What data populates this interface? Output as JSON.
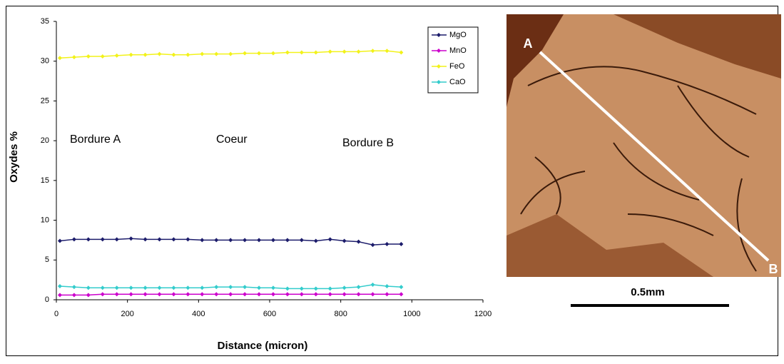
{
  "chart_data": {
    "type": "line",
    "y_label": "Oxydes %",
    "x_label": "Distance (micron)",
    "annotations": [
      "Bordure A",
      "Coeur",
      "Bordure B"
    ],
    "x": [
      10,
      50,
      90,
      130,
      170,
      210,
      250,
      290,
      330,
      370,
      410,
      450,
      490,
      530,
      570,
      610,
      650,
      690,
      730,
      770,
      810,
      850,
      890,
      930,
      970
    ],
    "series": [
      {
        "name": "MgO",
        "color": "#1c1c6b",
        "values": [
          7.4,
          7.6,
          7.6,
          7.6,
          7.6,
          7.7,
          7.6,
          7.6,
          7.6,
          7.6,
          7.5,
          7.5,
          7.5,
          7.5,
          7.5,
          7.5,
          7.5,
          7.5,
          7.4,
          7.6,
          7.4,
          7.3,
          6.9,
          7.0,
          7.0
        ]
      },
      {
        "name": "MnO",
        "color": "#cc00cc",
        "values": [
          0.6,
          0.6,
          0.6,
          0.7,
          0.7,
          0.7,
          0.7,
          0.7,
          0.7,
          0.7,
          0.7,
          0.7,
          0.7,
          0.7,
          0.7,
          0.7,
          0.7,
          0.7,
          0.7,
          0.7,
          0.7,
          0.7,
          0.7,
          0.7,
          0.7
        ]
      },
      {
        "name": "FeO",
        "color": "#f2f21a",
        "values": [
          30.4,
          30.5,
          30.6,
          30.6,
          30.7,
          30.8,
          30.8,
          30.9,
          30.8,
          30.8,
          30.9,
          30.9,
          30.9,
          31.0,
          31.0,
          31.0,
          31.1,
          31.1,
          31.1,
          31.2,
          31.2,
          31.2,
          31.3,
          31.3,
          31.1
        ]
      },
      {
        "name": "CaO",
        "color": "#33cccc",
        "values": [
          1.7,
          1.6,
          1.5,
          1.5,
          1.5,
          1.5,
          1.5,
          1.5,
          1.5,
          1.5,
          1.5,
          1.6,
          1.6,
          1.6,
          1.5,
          1.5,
          1.4,
          1.4,
          1.4,
          1.4,
          1.5,
          1.6,
          1.9,
          1.7,
          1.6
        ]
      }
    ],
    "xlim": [
      0,
      1200
    ],
    "xticks": [
      0,
      200,
      400,
      600,
      800,
      1000,
      1200
    ],
    "ylim": [
      0,
      35
    ],
    "yticks": [
      0,
      5,
      10,
      15,
      20,
      25,
      30,
      35
    ],
    "legend": "upper right"
  },
  "photo": {
    "label_a": "A",
    "label_b": "B",
    "scale": "0.5mm"
  }
}
